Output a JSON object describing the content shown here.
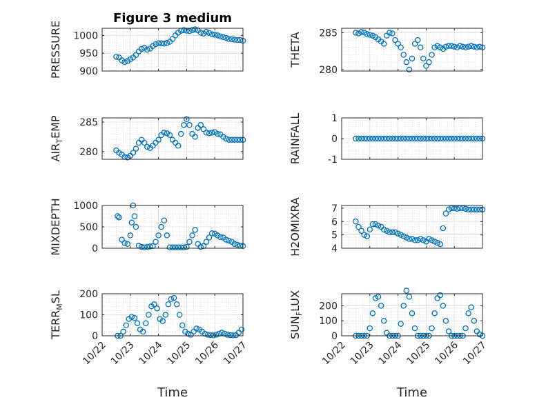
{
  "title": "Figure 3 medium",
  "marker_color": "#0072BD",
  "x_ticks": [
    "10/22",
    "10/23",
    "10/24",
    "10/25",
    "10/26",
    "10/27"
  ],
  "x_label": "Time",
  "chart_data": [
    {
      "type": "scatter",
      "ylabel": "PRESSURE",
      "ylim": [
        900,
        1020
      ],
      "yticks": [
        900,
        950,
        1000
      ],
      "xlim": [
        0,
        5
      ],
      "grid": true,
      "title": "Figure 3 medium",
      "x": [
        0.5,
        0.6,
        0.7,
        0.8,
        0.9,
        1.0,
        1.1,
        1.2,
        1.3,
        1.4,
        1.5,
        1.6,
        1.7,
        1.8,
        1.9,
        2.0,
        2.1,
        2.2,
        2.3,
        2.4,
        2.5,
        2.6,
        2.7,
        2.8,
        2.9,
        3.0,
        3.1,
        3.2,
        3.3,
        3.4,
        3.5,
        3.6,
        3.7,
        3.8,
        3.9,
        4.0,
        4.1,
        4.2,
        4.3,
        4.4,
        4.5,
        4.6,
        4.7,
        4.8,
        4.9,
        5.0
      ],
      "y": [
        940,
        938,
        930,
        925,
        928,
        933,
        938,
        945,
        955,
        962,
        965,
        960,
        963,
        970,
        975,
        978,
        978,
        977,
        979,
        982,
        990,
        1000,
        1008,
        1013,
        1015,
        1013,
        1012,
        1015,
        1017,
        1014,
        1008,
        1005,
        1010,
        1007,
        1003,
        1002,
        1000,
        997,
        995,
        993,
        990,
        989,
        988,
        987,
        987,
        985
      ]
    },
    {
      "type": "scatter",
      "ylabel": "THETA",
      "ylim": [
        279.8,
        285.6
      ],
      "yticks": [
        280,
        285
      ],
      "xlim": [
        0,
        5
      ],
      "grid": true,
      "x": [
        0.5,
        0.6,
        0.7,
        0.8,
        0.9,
        1.0,
        1.1,
        1.2,
        1.3,
        1.4,
        1.5,
        1.6,
        1.7,
        1.8,
        1.9,
        2.0,
        2.1,
        2.2,
        2.3,
        2.4,
        2.5,
        2.6,
        2.7,
        2.8,
        2.9,
        3.0,
        3.1,
        3.2,
        3.3,
        3.4,
        3.5,
        3.6,
        3.7,
        3.8,
        3.9,
        4.0,
        4.1,
        4.2,
        4.3,
        4.4,
        4.5,
        4.6,
        4.7,
        4.8,
        4.9,
        5.0
      ],
      "y": [
        285.0,
        284.9,
        285.1,
        285.0,
        284.8,
        284.7,
        284.6,
        284.4,
        284.1,
        283.8,
        283.5,
        284.6,
        285.0,
        284.9,
        284.0,
        283.5,
        283.0,
        282.0,
        281.0,
        280.0,
        281.5,
        283.5,
        284.0,
        283.0,
        281.5,
        280.5,
        281.0,
        282.0,
        283.0,
        283.2,
        283.0,
        282.8,
        283.1,
        283.2,
        283.2,
        283.1,
        283.0,
        283.2,
        283.1,
        283.0,
        283.1,
        283.2,
        283.1,
        283.0,
        283.1,
        283.0
      ]
    },
    {
      "type": "scatter",
      "ylabel": "AIR_TEMP",
      "ylim": [
        278.7,
        285.7
      ],
      "yticks": [
        280,
        285
      ],
      "xlim": [
        0,
        5
      ],
      "grid": true,
      "x": [
        0.5,
        0.6,
        0.7,
        0.8,
        0.9,
        1.0,
        1.1,
        1.2,
        1.3,
        1.4,
        1.5,
        1.6,
        1.7,
        1.8,
        1.9,
        2.0,
        2.1,
        2.2,
        2.3,
        2.4,
        2.5,
        2.6,
        2.7,
        2.8,
        2.9,
        3.0,
        3.1,
        3.2,
        3.3,
        3.4,
        3.5,
        3.6,
        3.7,
        3.8,
        3.9,
        4.0,
        4.1,
        4.2,
        4.3,
        4.4,
        4.5,
        4.6,
        4.7,
        4.8,
        4.9,
        5.0
      ],
      "y": [
        280.2,
        279.8,
        279.5,
        279.1,
        279.0,
        279.3,
        279.8,
        280.5,
        281.5,
        282.0,
        281.5,
        280.8,
        280.6,
        281.0,
        281.5,
        282.0,
        282.8,
        283.2,
        283.1,
        282.8,
        282.0,
        281.5,
        281.0,
        283.0,
        284.5,
        285.5,
        284.5,
        283.0,
        282.5,
        284.0,
        284.5,
        283.8,
        283.2,
        283.1,
        283.2,
        283.3,
        283.0,
        282.9,
        282.5,
        282.2,
        282.0,
        282.0,
        282.0,
        282.0,
        282.0,
        282.0
      ]
    },
    {
      "type": "scatter",
      "ylabel": "RAINFALL",
      "ylim": [
        -1,
        1
      ],
      "yticks": [
        -1,
        0,
        1
      ],
      "xlim": [
        0,
        5
      ],
      "grid": true,
      "x": [
        0.5,
        0.6,
        0.7,
        0.8,
        0.9,
        1.0,
        1.1,
        1.2,
        1.3,
        1.4,
        1.5,
        1.6,
        1.7,
        1.8,
        1.9,
        2.0,
        2.1,
        2.2,
        2.3,
        2.4,
        2.5,
        2.6,
        2.7,
        2.8,
        2.9,
        3.0,
        3.1,
        3.2,
        3.3,
        3.4,
        3.5,
        3.6,
        3.7,
        3.8,
        3.9,
        4.0,
        4.1,
        4.2,
        4.3,
        4.4,
        4.5,
        4.6,
        4.7,
        4.8,
        4.9,
        5.0
      ],
      "y": [
        0,
        0,
        0,
        0,
        0,
        0,
        0,
        0,
        0,
        0,
        0,
        0,
        0,
        0,
        0,
        0,
        0,
        0,
        0,
        0,
        0,
        0,
        0,
        0,
        0,
        0,
        0,
        0,
        0,
        0,
        0,
        0,
        0,
        0,
        0,
        0,
        0,
        0,
        0,
        0,
        0,
        0,
        0,
        0,
        0,
        0
      ]
    },
    {
      "type": "scatter",
      "ylabel": "MIXDEPTH",
      "ylim": [
        0,
        1000
      ],
      "yticks": [
        0,
        500,
        1000
      ],
      "xlim": [
        0,
        5
      ],
      "grid": true,
      "x": [
        0.55,
        0.6,
        0.7,
        0.8,
        0.9,
        1.0,
        1.05,
        1.1,
        1.15,
        1.2,
        1.3,
        1.4,
        1.5,
        1.6,
        1.7,
        1.8,
        1.9,
        2.0,
        2.1,
        2.2,
        2.3,
        2.4,
        2.5,
        2.6,
        2.7,
        2.8,
        2.9,
        3.0,
        3.1,
        3.2,
        3.3,
        3.4,
        3.5,
        3.6,
        3.7,
        3.8,
        3.9,
        4.0,
        4.1,
        4.2,
        4.3,
        4.4,
        4.5,
        4.6,
        4.7,
        4.8,
        4.9,
        5.0
      ],
      "y": [
        750,
        720,
        200,
        120,
        100,
        300,
        600,
        1000,
        750,
        500,
        60,
        30,
        20,
        30,
        40,
        50,
        150,
        300,
        500,
        650,
        300,
        20,
        20,
        20,
        20,
        20,
        20,
        30,
        150,
        300,
        430,
        100,
        30,
        50,
        150,
        250,
        350,
        340,
        300,
        260,
        250,
        200,
        180,
        150,
        100,
        80,
        60,
        50
      ]
    },
    {
      "type": "scatter",
      "ylabel": "H2OMIXRA",
      "ylim": [
        4,
        7.2
      ],
      "yticks": [
        4,
        5,
        6,
        7
      ],
      "xlim": [
        0,
        5
      ],
      "grid": true,
      "x": [
        0.5,
        0.6,
        0.7,
        0.8,
        0.9,
        1.0,
        1.1,
        1.2,
        1.3,
        1.4,
        1.5,
        1.6,
        1.7,
        1.8,
        1.9,
        2.0,
        2.1,
        2.2,
        2.3,
        2.4,
        2.5,
        2.6,
        2.7,
        2.8,
        2.9,
        3.0,
        3.1,
        3.2,
        3.3,
        3.4,
        3.5,
        3.6,
        3.7,
        3.8,
        3.9,
        4.0,
        4.1,
        4.2,
        4.3,
        4.4,
        4.5,
        4.6,
        4.7,
        4.8,
        4.9,
        5.0
      ],
      "y": [
        6.0,
        5.6,
        5.3,
        5.0,
        4.9,
        5.4,
        5.8,
        5.8,
        5.7,
        5.6,
        5.4,
        5.3,
        5.2,
        5.2,
        5.2,
        5.1,
        5.0,
        4.9,
        4.8,
        4.7,
        4.7,
        4.6,
        4.6,
        4.7,
        4.6,
        4.5,
        4.7,
        4.6,
        4.5,
        4.4,
        4.3,
        5.5,
        6.6,
        6.9,
        7.0,
        7.0,
        6.95,
        7.0,
        7.0,
        6.95,
        6.9,
        6.9,
        6.9,
        6.9,
        6.9,
        6.9
      ]
    },
    {
      "type": "scatter",
      "ylabel": "TERR_MSL",
      "ylim": [
        0,
        200
      ],
      "yticks": [
        0,
        100,
        200
      ],
      "xlim": [
        0,
        5
      ],
      "grid": true,
      "x": [
        0.55,
        0.65,
        0.75,
        0.85,
        0.95,
        1.05,
        1.15,
        1.25,
        1.35,
        1.45,
        1.55,
        1.65,
        1.75,
        1.85,
        1.95,
        2.05,
        2.15,
        2.25,
        2.35,
        2.45,
        2.55,
        2.65,
        2.75,
        2.85,
        2.95,
        3.05,
        3.15,
        3.25,
        3.35,
        3.45,
        3.55,
        3.65,
        3.75,
        3.85,
        3.95,
        4.05,
        4.15,
        4.25,
        4.35,
        4.45,
        4.55,
        4.65,
        4.75,
        4.85,
        4.95
      ],
      "y": [
        0,
        0,
        20,
        50,
        80,
        90,
        85,
        60,
        30,
        20,
        60,
        100,
        140,
        150,
        130,
        80,
        70,
        100,
        150,
        175,
        180,
        150,
        100,
        50,
        20,
        10,
        5,
        20,
        35,
        30,
        20,
        10,
        5,
        3,
        2,
        5,
        10,
        15,
        10,
        5,
        3,
        2,
        3,
        15,
        30
      ]
    },
    {
      "type": "scatter",
      "ylabel": "SUN_FLUX",
      "ylim": [
        0,
        280
      ],
      "yticks": [
        0,
        100,
        200
      ],
      "xlim": [
        0,
        5
      ],
      "grid": true,
      "x": [
        0.5,
        0.6,
        0.7,
        0.8,
        0.9,
        1.0,
        1.1,
        1.2,
        1.3,
        1.4,
        1.5,
        1.6,
        1.7,
        1.8,
        1.9,
        2.0,
        2.1,
        2.2,
        2.3,
        2.4,
        2.5,
        2.6,
        2.7,
        2.8,
        2.9,
        3.0,
        3.1,
        3.2,
        3.3,
        3.4,
        3.5,
        3.6,
        3.7,
        3.8,
        3.9,
        4.0,
        4.1,
        4.2,
        4.3,
        4.4,
        4.5,
        4.6,
        4.7,
        4.8,
        4.9,
        5.0
      ],
      "y": [
        0,
        0,
        0,
        0,
        0,
        50,
        150,
        250,
        260,
        200,
        100,
        20,
        0,
        0,
        0,
        0,
        80,
        200,
        300,
        260,
        150,
        50,
        0,
        0,
        0,
        0,
        0,
        50,
        150,
        250,
        270,
        200,
        100,
        30,
        0,
        0,
        0,
        0,
        0,
        50,
        150,
        190,
        100,
        30,
        10,
        0
      ]
    }
  ]
}
